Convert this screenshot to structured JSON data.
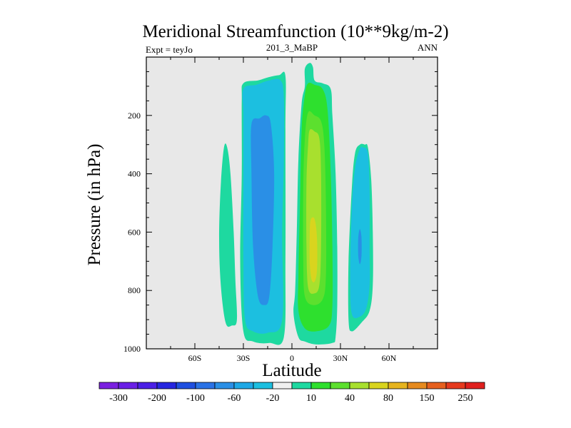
{
  "chart_data": {
    "type": "contour",
    "title": "Meridional Streamfunction (10**9kg/m-2)",
    "subtitle_left": "Expt = teyJo",
    "subtitle_center": "201_3_MaBP",
    "subtitle_right": "ANN",
    "xlabel": "Latitude",
    "ylabel": "Pressure (in hPa)",
    "xlim": [
      -90,
      90
    ],
    "ylim": [
      1000,
      0
    ],
    "x_ticks": [
      {
        "value": -60,
        "label": "60S"
      },
      {
        "value": -30,
        "label": "30S"
      },
      {
        "value": 0,
        "label": "0"
      },
      {
        "value": 30,
        "label": "30N"
      },
      {
        "value": 60,
        "label": "60N"
      }
    ],
    "y_ticks": [
      {
        "value": 200,
        "label": "200"
      },
      {
        "value": 400,
        "label": "400"
      },
      {
        "value": 600,
        "label": "600"
      },
      {
        "value": 800,
        "label": "800"
      },
      {
        "value": 1000,
        "label": "1000"
      }
    ],
    "colorbar": {
      "colors": [
        "#7a1fe0",
        "#6a1fe6",
        "#4b1fe6",
        "#2626e0",
        "#1f4fe0",
        "#2a72e6",
        "#2a8fe6",
        "#1ea8e6",
        "#1cbfe0",
        "#f0f0f0",
        "#1ed9a0",
        "#2ee02e",
        "#5ce02e",
        "#a8e02e",
        "#d9d41e",
        "#e6b41e",
        "#e68a1e",
        "#e6601e",
        "#e63a1e",
        "#e0201e"
      ],
      "labels": [
        {
          "after": 1,
          "label": "-300"
        },
        {
          "after": 3,
          "label": "-200"
        },
        {
          "after": 5,
          "label": "-100"
        },
        {
          "after": 7,
          "label": "-60"
        },
        {
          "after": 9,
          "label": "-20"
        },
        {
          "after": 11,
          "label": "10"
        },
        {
          "after": 13,
          "label": "40"
        },
        {
          "after": 15,
          "label": "80"
        },
        {
          "after": 17,
          "label": "150"
        },
        {
          "after": 19,
          "label": "250"
        }
      ]
    },
    "cells": [
      {
        "name": "southern-outer-cell",
        "color": "#1ed9a0",
        "pts": [
          [
            -42,
            310
          ],
          [
            -40,
            310
          ],
          [
            -38,
            400
          ],
          [
            -36,
            600
          ],
          [
            -35,
            760
          ],
          [
            -34,
            900
          ],
          [
            -37,
            920
          ],
          [
            -41,
            910
          ],
          [
            -44,
            780
          ],
          [
            -45,
            620
          ],
          [
            -44,
            440
          ]
        ]
      },
      {
        "name": "southern-cell-outer-contour",
        "color": "#1ed9a0",
        "pts": [
          [
            -30,
            90
          ],
          [
            -21,
            80
          ],
          [
            -15,
            70
          ],
          [
            -8,
            62
          ],
          [
            -4,
            65
          ],
          [
            -4,
            250
          ],
          [
            -4,
            700
          ],
          [
            -5,
            960
          ],
          [
            -14,
            980
          ],
          [
            -24,
            975
          ],
          [
            -30,
            940
          ],
          [
            -32,
            700
          ],
          [
            -31,
            400
          ],
          [
            -31,
            150
          ]
        ]
      },
      {
        "name": "southern-cell-20-contour",
        "color": "#1cbfe0",
        "pts": [
          [
            -30,
            110
          ],
          [
            -22,
            95
          ],
          [
            -14,
            80
          ],
          [
            -7,
            80
          ],
          [
            -5,
            140
          ],
          [
            -5,
            350
          ],
          [
            -6,
            600
          ],
          [
            -6,
            900
          ],
          [
            -15,
            945
          ],
          [
            -24,
            940
          ],
          [
            -29,
            900
          ],
          [
            -30,
            700
          ],
          [
            -30,
            400
          ],
          [
            -30,
            200
          ]
        ]
      },
      {
        "name": "southern-cell-60-contour",
        "color": "#2a8fe6",
        "pts": [
          [
            -25,
            230
          ],
          [
            -20,
            210
          ],
          [
            -16,
            200
          ],
          [
            -13,
            230
          ],
          [
            -11,
            400
          ],
          [
            -12,
            650
          ],
          [
            -14,
            820
          ],
          [
            -17,
            850
          ],
          [
            -21,
            820
          ],
          [
            -24,
            650
          ],
          [
            -25,
            400
          ]
        ]
      },
      {
        "name": "northern-cell-outer-contour",
        "color": "#1ed9a0",
        "pts": [
          [
            8,
            40
          ],
          [
            11,
            20
          ],
          [
            13,
            35
          ],
          [
            14,
            80
          ],
          [
            19,
            90
          ],
          [
            24,
            110
          ],
          [
            25,
            200
          ],
          [
            27,
            400
          ],
          [
            28,
            650
          ],
          [
            28,
            850
          ],
          [
            27,
            960
          ],
          [
            25,
            980
          ],
          [
            15,
            985
          ],
          [
            8,
            975
          ],
          [
            4,
            960
          ],
          [
            1,
            880
          ],
          [
            2,
            800
          ],
          [
            3,
            600
          ],
          [
            4,
            350
          ],
          [
            6,
            160
          ],
          [
            8,
            100
          ]
        ]
      },
      {
        "name": "northern-cell-10-contour",
        "color": "#2ee02e",
        "pts": [
          [
            10,
            90
          ],
          [
            14,
            95
          ],
          [
            19,
            110
          ],
          [
            22,
            180
          ],
          [
            24,
            400
          ],
          [
            25,
            650
          ],
          [
            25,
            850
          ],
          [
            23,
            920
          ],
          [
            15,
            940
          ],
          [
            8,
            930
          ],
          [
            4,
            870
          ],
          [
            4,
            750
          ],
          [
            5,
            500
          ],
          [
            6,
            250
          ],
          [
            8,
            130
          ]
        ]
      },
      {
        "name": "northern-cell-40-contour",
        "color": "#5ce02e",
        "pts": [
          [
            10,
            190
          ],
          [
            14,
            200
          ],
          [
            18,
            220
          ],
          [
            20,
            300
          ],
          [
            21,
            500
          ],
          [
            21,
            750
          ],
          [
            19,
            830
          ],
          [
            13,
            850
          ],
          [
            8,
            820
          ],
          [
            7,
            700
          ],
          [
            7,
            450
          ],
          [
            8,
            280
          ]
        ]
      },
      {
        "name": "northern-cell-80-contour",
        "color": "#a8e02e",
        "pts": [
          [
            11,
            250
          ],
          [
            14,
            255
          ],
          [
            17,
            280
          ],
          [
            18,
            400
          ],
          [
            18,
            650
          ],
          [
            17,
            780
          ],
          [
            14,
            810
          ],
          [
            10,
            790
          ],
          [
            9,
            650
          ],
          [
            9,
            430
          ],
          [
            10,
            300
          ]
        ]
      },
      {
        "name": "northern-cell-150-contour",
        "color": "#d9d41e",
        "pts": [
          [
            11.5,
            560
          ],
          [
            14,
            555
          ],
          [
            15.5,
            620
          ],
          [
            15.5,
            730
          ],
          [
            14,
            770
          ],
          [
            12,
            760
          ],
          [
            11,
            700
          ],
          [
            11,
            620
          ]
        ]
      },
      {
        "name": "northern-outer-cell-10-contour",
        "color": "#1ed9a0",
        "pts": [
          [
            45,
            300
          ],
          [
            47,
            310
          ],
          [
            49,
            420
          ],
          [
            50,
            600
          ],
          [
            50,
            780
          ],
          [
            48,
            870
          ],
          [
            43,
            910
          ],
          [
            37,
            940
          ],
          [
            35,
            900
          ],
          [
            35,
            700
          ],
          [
            37,
            450
          ],
          [
            39,
            330
          ],
          [
            42,
            300
          ]
        ]
      },
      {
        "name": "northern-outer-cell-20-contour",
        "color": "#1cbfe0",
        "pts": [
          [
            44,
            310
          ],
          [
            47,
            330
          ],
          [
            48,
            460
          ],
          [
            48,
            650
          ],
          [
            48,
            780
          ],
          [
            46,
            860
          ],
          [
            42,
            890
          ],
          [
            37,
            880
          ],
          [
            36,
            750
          ],
          [
            37,
            520
          ],
          [
            39,
            380
          ],
          [
            42,
            315
          ]
        ]
      },
      {
        "name": "northern-outer-cell-core",
        "color": "#2a8fe6",
        "pts": [
          [
            42,
            590
          ],
          [
            43,
            620
          ],
          [
            43,
            680
          ],
          [
            42,
            710
          ],
          [
            41,
            680
          ],
          [
            41,
            620
          ]
        ]
      }
    ]
  }
}
